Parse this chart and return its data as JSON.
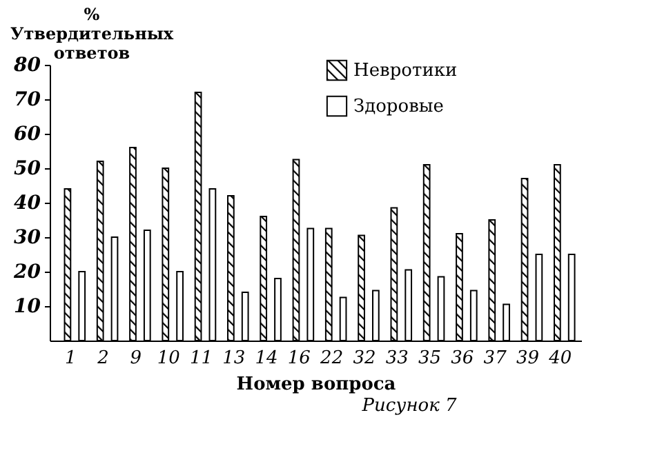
{
  "chart_data": {
    "type": "bar",
    "ylabel": "% Утвердительных ответов",
    "xlabel": "Номер вопроса",
    "categories": [
      "1",
      "2",
      "9",
      "10",
      "11",
      "13",
      "14",
      "16",
      "22",
      "32",
      "33",
      "35",
      "36",
      "37",
      "39",
      "40"
    ],
    "series": [
      {
        "name": "Невротики",
        "color": "#000000",
        "values": [
          44,
          52,
          56,
          50,
          72,
          42,
          36,
          52.5,
          32.5,
          30.5,
          38.5,
          51,
          31,
          35,
          47,
          51
        ]
      },
      {
        "name": "Здоровые",
        "color": "#ffffff",
        "values": [
          20,
          30,
          32,
          20,
          44,
          14,
          18,
          32.5,
          12.5,
          14.5,
          20.5,
          18.5,
          14.5,
          10.5,
          25,
          25
        ]
      }
    ],
    "ylim": [
      0,
      80
    ],
    "yticks": [
      10,
      20,
      30,
      40,
      50,
      60,
      70,
      80
    ],
    "grid": false,
    "legend": "top right",
    "annotations": [
      "Рисунок 7"
    ]
  }
}
